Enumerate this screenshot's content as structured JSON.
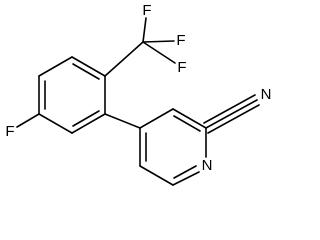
{
  "molecule": {
    "atoms": [
      {
        "label": "F"
      },
      {
        "label": "F"
      },
      {
        "label": "F"
      },
      {
        "label": "F"
      },
      {
        "label": "N"
      },
      {
        "label": "N"
      }
    ]
  }
}
